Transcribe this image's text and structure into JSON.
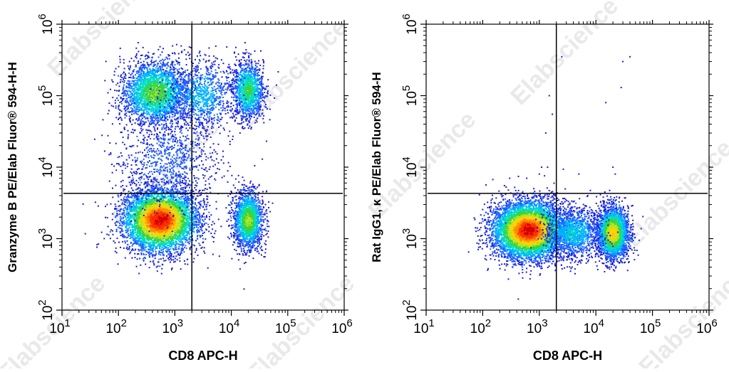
{
  "watermark": "Elabscience",
  "colors": {
    "axis": "#000000",
    "gate": "#000000",
    "density_scale": [
      "#1a1ad6",
      "#1f5cff",
      "#00b4ff",
      "#00e0c0",
      "#3cd23c",
      "#b4e61e",
      "#ffd200",
      "#ff8c00",
      "#ff3200",
      "#d20000"
    ]
  },
  "chart_data": [
    {
      "type": "scatter",
      "subtype": "flow-cytometry-density-dot-plot",
      "title": "",
      "xlabel": "CD8 APC-H",
      "ylabel": "Granzyme B PE/Elab Fluor® 594-H-H",
      "x_scale": "log",
      "y_scale": "log",
      "xlim": [
        10,
        1000000
      ],
      "ylim": [
        100,
        1000000
      ],
      "x_ticks": [
        {
          "base": "10",
          "exp": "1",
          "value": 10
        },
        {
          "base": "10",
          "exp": "2",
          "value": 100
        },
        {
          "base": "10",
          "exp": "3",
          "value": 1000
        },
        {
          "base": "10",
          "exp": "4",
          "value": 10000
        },
        {
          "base": "10",
          "exp": "5",
          "value": 100000
        },
        {
          "base": "10",
          "exp": "6",
          "value": 1000000
        }
      ],
      "y_ticks": [
        {
          "base": "10",
          "exp": "2",
          "value": 100
        },
        {
          "base": "10",
          "exp": "3",
          "value": 1000
        },
        {
          "base": "10",
          "exp": "4",
          "value": 10000
        },
        {
          "base": "10",
          "exp": "5",
          "value": 100000
        },
        {
          "base": "10",
          "exp": "6",
          "value": 1000000
        }
      ],
      "quadrant_gate": {
        "x": 2000,
        "y": 4300
      },
      "populations": [
        {
          "center": [
            550,
            1800
          ],
          "spread": [
            0.33,
            0.22
          ],
          "count": 5200,
          "peak": 1.0
        },
        {
          "center": [
            20000,
            1800
          ],
          "spread": [
            0.13,
            0.2
          ],
          "count": 1800,
          "peak": 0.55
        },
        {
          "center": [
            450,
            110000
          ],
          "spread": [
            0.3,
            0.22
          ],
          "count": 2600,
          "peak": 0.5
        },
        {
          "center": [
            20000,
            120000
          ],
          "spread": [
            0.14,
            0.2
          ],
          "count": 1300,
          "peak": 0.45
        },
        {
          "center": [
            3000,
            100000
          ],
          "spread": [
            0.3,
            0.25
          ],
          "count": 900,
          "peak": 0.25
        },
        {
          "center": [
            800,
            12000
          ],
          "spread": [
            0.45,
            0.35
          ],
          "count": 900,
          "peak": 0.12
        }
      ]
    },
    {
      "type": "scatter",
      "subtype": "flow-cytometry-density-dot-plot",
      "title": "",
      "xlabel": "CD8 APC-H",
      "ylabel": "Rat IgG1, κ PE/Elab Fluor® 594-H",
      "x_scale": "log",
      "y_scale": "log",
      "xlim": [
        10,
        1000000
      ],
      "ylim": [
        100,
        1000000
      ],
      "x_ticks": [
        {
          "base": "10",
          "exp": "1",
          "value": 10
        },
        {
          "base": "10",
          "exp": "2",
          "value": 100
        },
        {
          "base": "10",
          "exp": "3",
          "value": 1000
        },
        {
          "base": "10",
          "exp": "4",
          "value": 10000
        },
        {
          "base": "10",
          "exp": "5",
          "value": 100000
        },
        {
          "base": "10",
          "exp": "6",
          "value": 1000000
        }
      ],
      "y_ticks": [
        {
          "base": "10",
          "exp": "2",
          "value": 100
        },
        {
          "base": "10",
          "exp": "3",
          "value": 1000
        },
        {
          "base": "10",
          "exp": "4",
          "value": 10000
        },
        {
          "base": "10",
          "exp": "5",
          "value": 100000
        },
        {
          "base": "10",
          "exp": "6",
          "value": 1000000
        }
      ],
      "quadrant_gate": {
        "x": 2000,
        "y": 4300
      },
      "populations": [
        {
          "center": [
            650,
            1300
          ],
          "spread": [
            0.32,
            0.2
          ],
          "count": 6000,
          "peak": 1.0
        },
        {
          "center": [
            20000,
            1200
          ],
          "spread": [
            0.14,
            0.18
          ],
          "count": 2800,
          "peak": 0.7
        },
        {
          "center": [
            4000,
            1200
          ],
          "spread": [
            0.25,
            0.18
          ],
          "count": 1200,
          "peak": 0.3
        }
      ],
      "sparse_events": [
        [
          2500,
          350000
        ],
        [
          30000,
          300000
        ],
        [
          40000,
          350000
        ],
        [
          28000,
          130000
        ],
        [
          15000,
          80000
        ],
        [
          1300,
          30000
        ],
        [
          1700,
          55000
        ],
        [
          1500,
          100000
        ],
        [
          1400,
          10000
        ],
        [
          1100,
          10000
        ],
        [
          1000,
          8000
        ],
        [
          5000,
          8000
        ],
        [
          20000,
          10000
        ],
        [
          22000,
          8000
        ],
        [
          600,
          7000
        ],
        [
          300,
          7000
        ]
      ]
    }
  ]
}
